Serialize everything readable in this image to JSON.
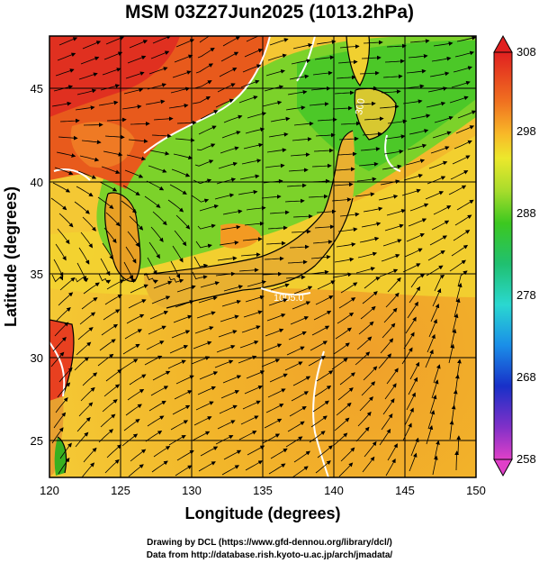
{
  "title": "MSM 03Z27Jun2025 (1013.2hPa)",
  "xlabel": "Longitude (degrees)",
  "ylabel": "Latitude  (degrees)",
  "x_ticks": [
    "120",
    "125",
    "130",
    "135",
    "140",
    "145",
    "150"
  ],
  "y_ticks": [
    "25",
    "30",
    "35",
    "40",
    "45"
  ],
  "colorbar_ticks": [
    "308",
    "298",
    "288",
    "278",
    "268",
    "258"
  ],
  "credits": {
    "line1": "Drawing by DCL (https://www.gfd-dennou.org/library/dcl/)",
    "line2": "Data from http://database.rish.kyoto-u.ac.jp/arch/jmadata/"
  },
  "contour_labels": [
    "300",
    "1005.0"
  ],
  "chart_data": {
    "type": "heatmap",
    "title": "MSM 03Z27Jun2025 (1013.2hPa)",
    "xlabel": "Longitude (degrees)",
    "ylabel": "Latitude  (degrees)",
    "xlim": [
      120,
      150
    ],
    "ylim": [
      22.5,
      47.5
    ],
    "x_ticks": [
      120,
      125,
      130,
      135,
      140,
      145,
      150
    ],
    "y_ticks": [
      25,
      30,
      35,
      40,
      45
    ],
    "colorbar": {
      "min": 258,
      "max": 308,
      "ticks": [
        308,
        298,
        288,
        278,
        268,
        258
      ],
      "colors": [
        "#d63fd6",
        "#2e3bd6",
        "#19a3e8",
        "#2ee0c8",
        "#22c21e",
        "#8fd82a",
        "#f0e02a",
        "#f8a820",
        "#e85018",
        "#e02020"
      ]
    },
    "grid": true,
    "overlays": [
      "streamlines",
      "white contours"
    ]
  }
}
